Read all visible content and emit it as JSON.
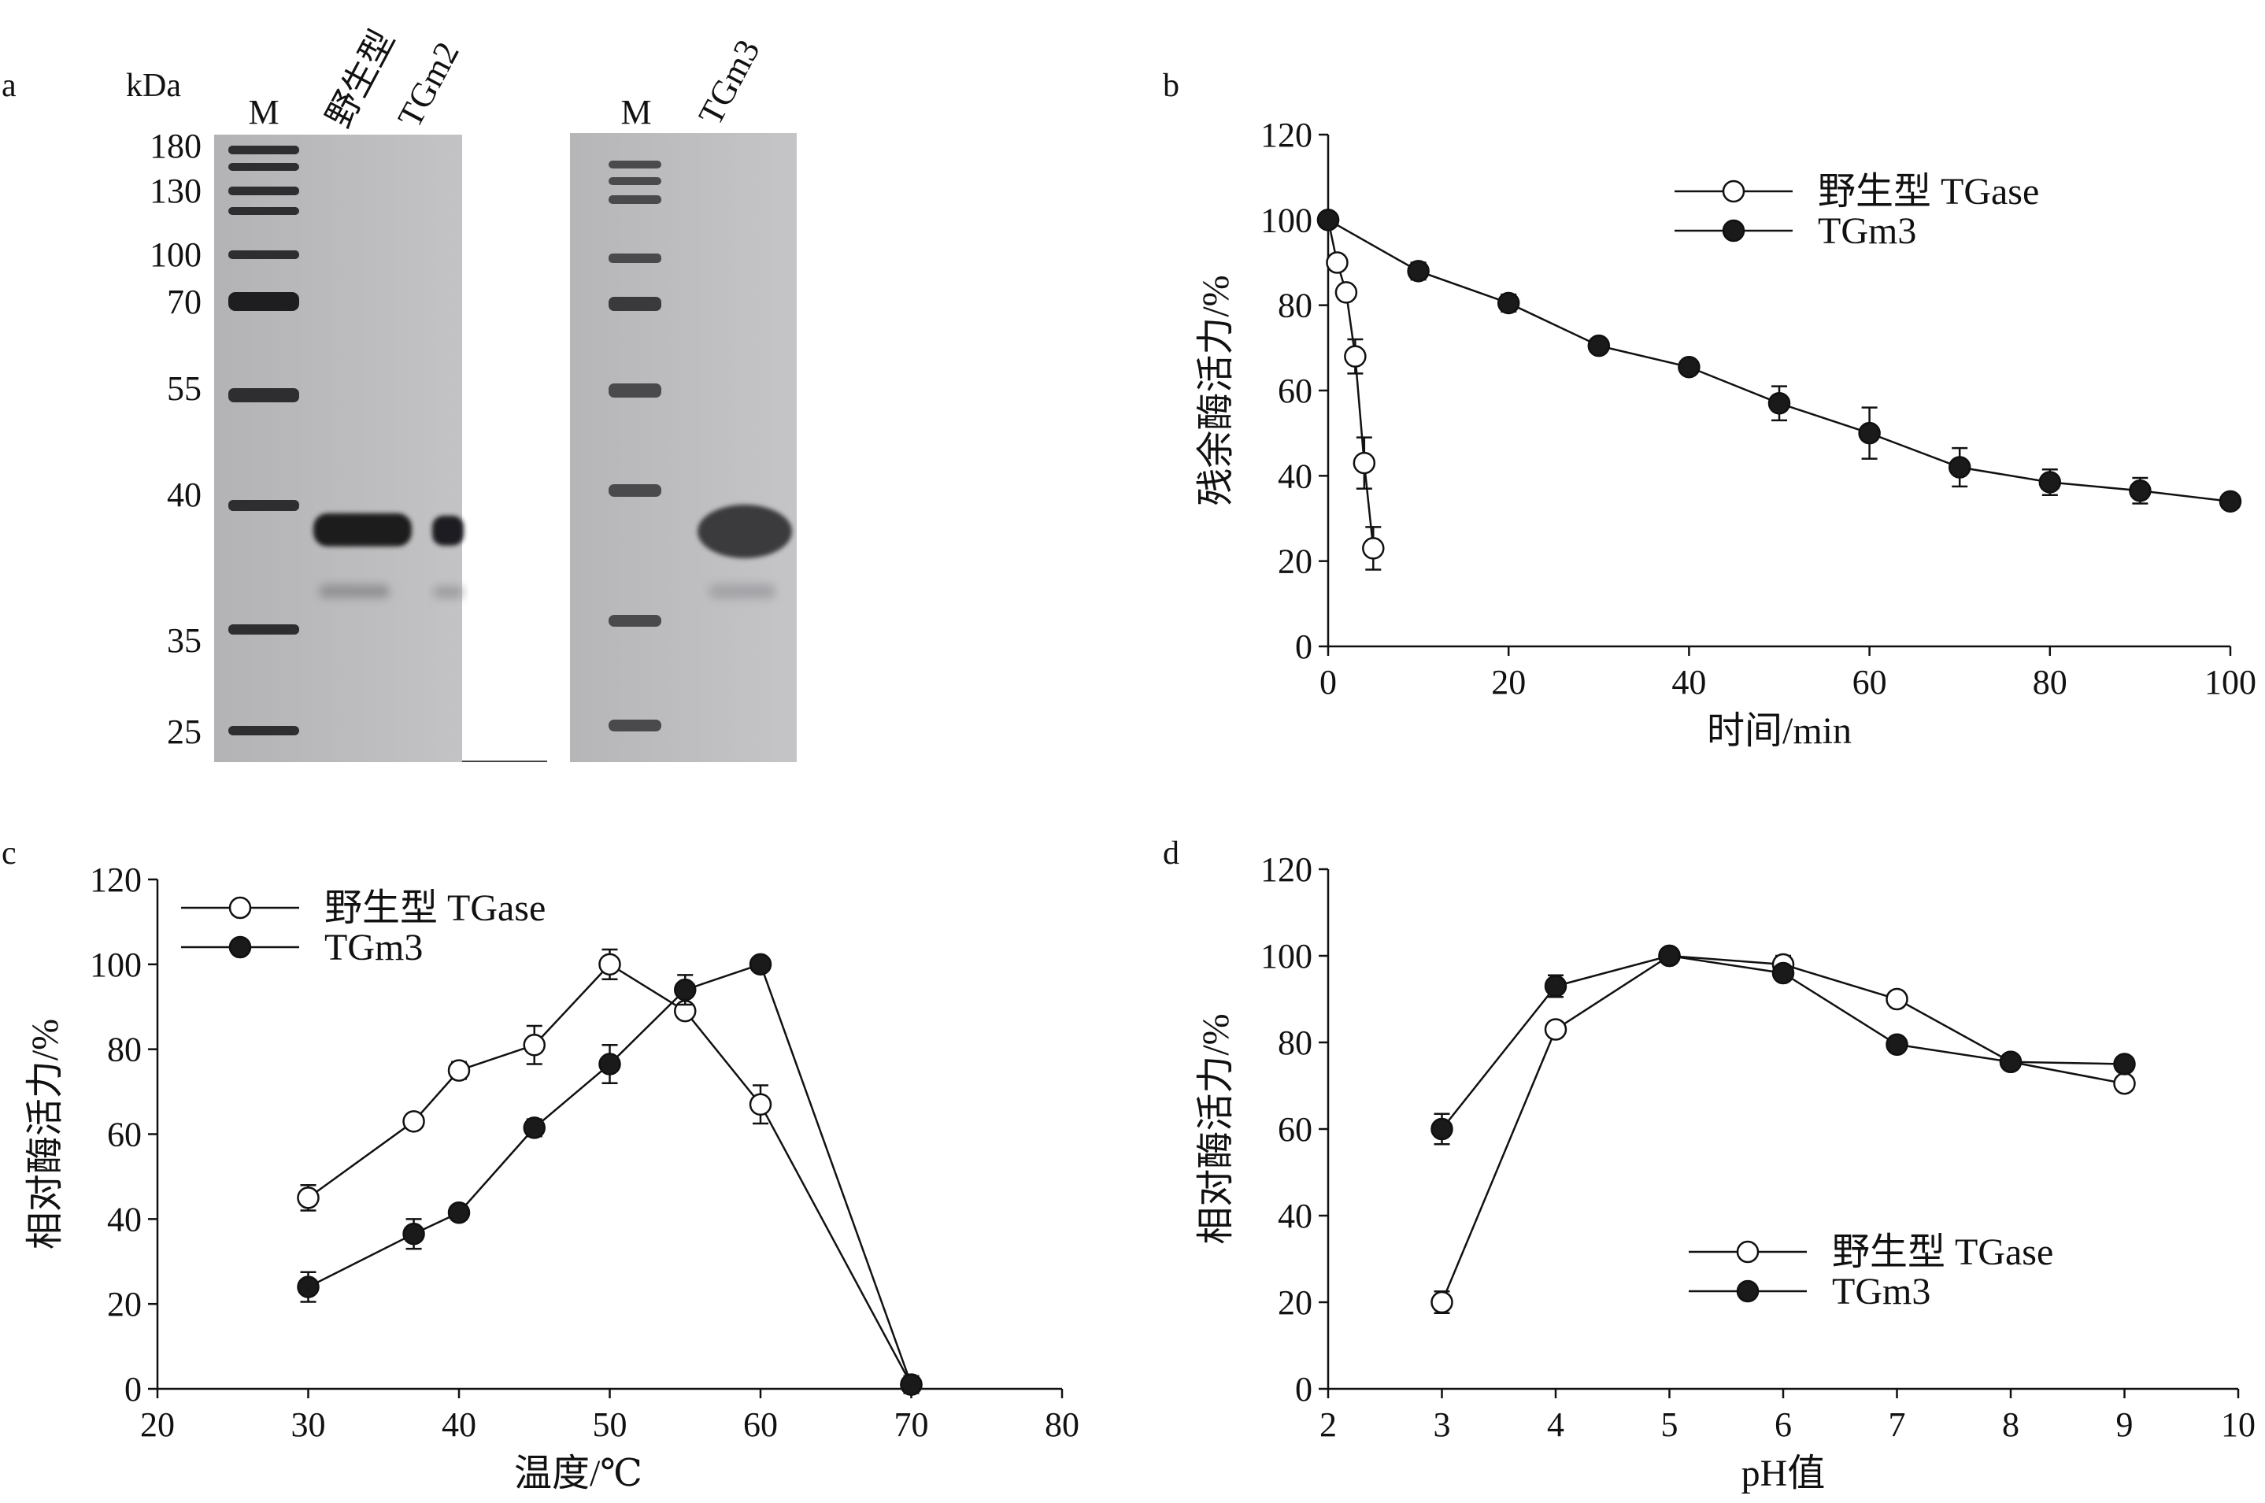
{
  "panels": {
    "a": {
      "letter": "a",
      "kda_label": "kDa",
      "ladder_ticks": [
        "180",
        "130",
        "100",
        "70",
        "55",
        "40",
        "35",
        "25"
      ],
      "gel1_lanes": [
        "M",
        "野生型",
        "TGm2"
      ],
      "gel2_lanes": [
        "M",
        "TGm3"
      ]
    },
    "b": {
      "letter": "b"
    },
    "c": {
      "letter": "c"
    },
    "d": {
      "letter": "d"
    }
  },
  "chart_data": [
    {
      "panel": "b",
      "type": "line",
      "xlabel": "时间/min",
      "ylabel": "残余酶活力/%",
      "xlim": [
        0,
        100
      ],
      "ylim": [
        0,
        120
      ],
      "xticks": [
        0,
        20,
        40,
        60,
        80,
        100
      ],
      "yticks": [
        0,
        20,
        40,
        60,
        80,
        100,
        120
      ],
      "legend_position": "top-right",
      "series": [
        {
          "name": "野生型 TGase",
          "marker": "open-circle",
          "x": [
            0,
            1,
            2,
            3,
            4,
            5
          ],
          "y": [
            100,
            90,
            83,
            68,
            43,
            23
          ],
          "err": [
            0,
            0,
            0,
            4,
            6,
            5
          ]
        },
        {
          "name": "TGm3",
          "marker": "filled-circle",
          "x": [
            0,
            10,
            20,
            30,
            40,
            50,
            60,
            70,
            80,
            90,
            100
          ],
          "y": [
            100,
            88,
            80.5,
            70.5,
            65.5,
            57,
            50,
            42,
            38.5,
            36.5,
            34
          ],
          "err": [
            0,
            2,
            2,
            1,
            1,
            4,
            6,
            4.5,
            3,
            3,
            1.5
          ]
        }
      ]
    },
    {
      "panel": "c",
      "type": "line",
      "xlabel": "温度/℃",
      "ylabel": "相对酶活力/%",
      "xlim": [
        20,
        80
      ],
      "ylim": [
        0,
        120
      ],
      "xticks": [
        20,
        30,
        40,
        50,
        60,
        70,
        80
      ],
      "yticks": [
        0,
        20,
        40,
        60,
        80,
        100,
        120
      ],
      "legend_position": "top-left",
      "series": [
        {
          "name": "野生型 TGase",
          "marker": "open-circle",
          "x": [
            30,
            37,
            40,
            45,
            50,
            55,
            60,
            70
          ],
          "y": [
            45,
            63,
            75,
            81,
            100,
            89,
            67,
            1
          ],
          "err": [
            3,
            1,
            2,
            4.5,
            3.5,
            1.5,
            4.5,
            2
          ]
        },
        {
          "name": "TGm3",
          "marker": "filled-circle",
          "x": [
            30,
            37,
            40,
            45,
            50,
            55,
            60,
            70
          ],
          "y": [
            24,
            36.5,
            41.5,
            61.5,
            76.5,
            94,
            100,
            1
          ],
          "err": [
            3.5,
            3.5,
            1.5,
            2,
            4.5,
            3.5,
            1.5,
            2
          ]
        }
      ]
    },
    {
      "panel": "d",
      "type": "line",
      "xlabel": "pH值",
      "ylabel": "相对酶活力/%",
      "xlim": [
        2,
        10
      ],
      "ylim": [
        0,
        120
      ],
      "xticks": [
        2,
        3,
        4,
        5,
        6,
        7,
        8,
        9,
        10
      ],
      "yticks": [
        0,
        20,
        40,
        60,
        80,
        100,
        120
      ],
      "legend_position": "bottom-right",
      "series": [
        {
          "name": "野生型 TGase",
          "marker": "open-circle",
          "x": [
            3,
            4,
            5,
            6,
            7,
            8,
            9
          ],
          "y": [
            20,
            83,
            100,
            98,
            90,
            75.5,
            70.5
          ],
          "err": [
            2.5,
            1,
            1.5,
            2,
            1.5,
            1.5,
            1
          ]
        },
        {
          "name": "TGm3",
          "marker": "filled-circle",
          "x": [
            3,
            4,
            5,
            6,
            7,
            8,
            9
          ],
          "y": [
            60,
            93,
            100,
            96,
            79.5,
            75.5,
            75
          ],
          "err": [
            3.5,
            2.5,
            1.5,
            1.5,
            1.5,
            1,
            1
          ]
        }
      ]
    }
  ]
}
